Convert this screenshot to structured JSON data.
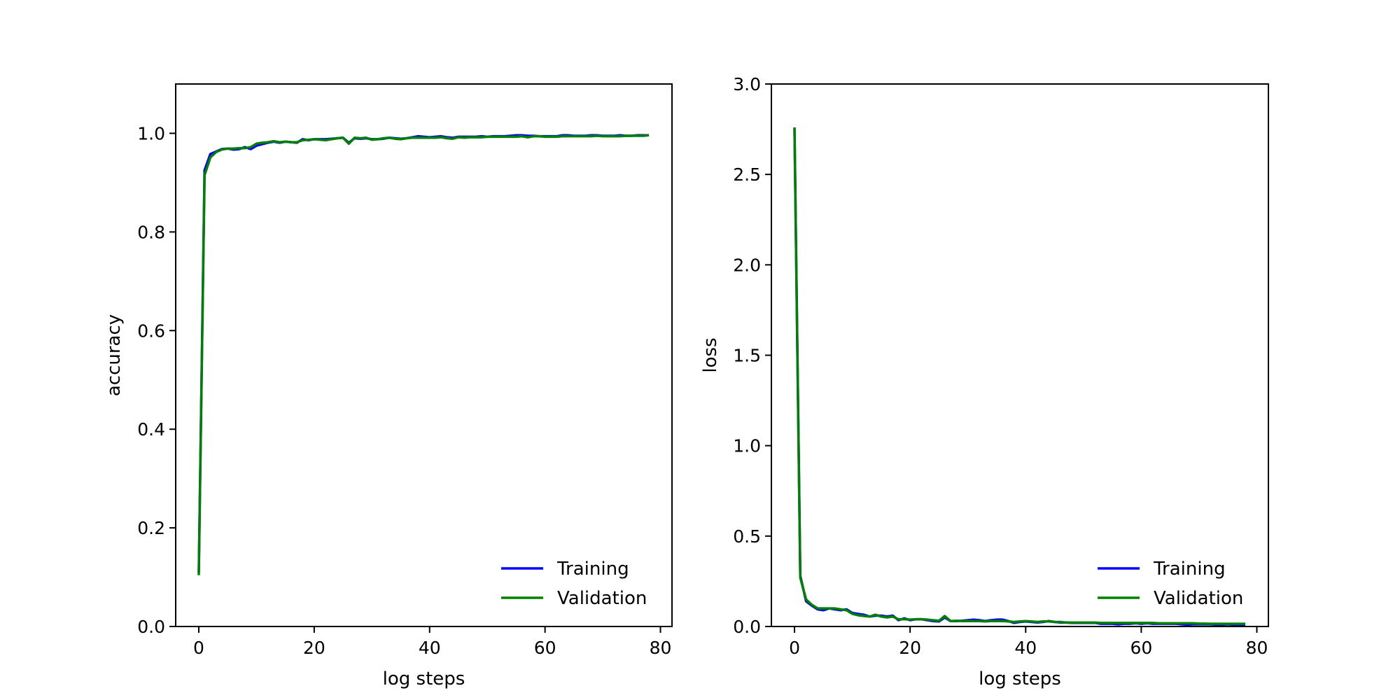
{
  "chart_data": [
    {
      "type": "line",
      "xlabel": "log steps",
      "ylabel": "accuracy",
      "xlim": [
        -4,
        82
      ],
      "ylim": [
        0,
        1.1
      ],
      "xticks": [
        0,
        20,
        40,
        60,
        80
      ],
      "xtick_labels": [
        "0",
        "20",
        "40",
        "60",
        "80"
      ],
      "yticks": [
        0,
        0.2,
        0.4,
        0.6,
        0.8,
        1.0
      ],
      "ytick_labels": [
        "0.0",
        "0.2",
        "0.4",
        "0.6",
        "0.8",
        "1.0"
      ],
      "grid": false,
      "legend": "lower-right",
      "series": [
        {
          "name": "Training",
          "color": "#0000ff",
          "x": [
            0,
            1,
            2,
            3,
            4,
            5,
            6,
            7,
            8,
            9,
            10,
            11,
            12,
            13,
            14,
            15,
            16,
            17,
            18,
            19,
            20,
            21,
            22,
            23,
            24,
            25,
            26,
            27,
            28,
            29,
            30,
            31,
            32,
            33,
            34,
            35,
            36,
            37,
            38,
            39,
            40,
            41,
            42,
            43,
            44,
            45,
            46,
            47,
            48,
            49,
            50,
            51,
            52,
            53,
            54,
            55,
            56,
            57,
            58,
            59,
            60,
            61,
            62,
            63,
            64,
            65,
            66,
            67,
            68,
            69,
            70,
            71,
            72,
            73,
            74,
            75,
            76,
            77,
            78
          ],
          "y": [
            0.11,
            0.925,
            0.958,
            0.963,
            0.968,
            0.969,
            0.967,
            0.968,
            0.972,
            0.968,
            0.975,
            0.978,
            0.981,
            0.983,
            0.981,
            0.983,
            0.982,
            0.981,
            0.988,
            0.986,
            0.988,
            0.988,
            0.988,
            0.989,
            0.99,
            0.991,
            0.981,
            0.99,
            0.989,
            0.99,
            0.988,
            0.988,
            0.989,
            0.991,
            0.99,
            0.989,
            0.99,
            0.992,
            0.994,
            0.993,
            0.992,
            0.993,
            0.994,
            0.992,
            0.991,
            0.993,
            0.993,
            0.993,
            0.993,
            0.994,
            0.993,
            0.994,
            0.994,
            0.994,
            0.995,
            0.996,
            0.996,
            0.995,
            0.995,
            0.994,
            0.994,
            0.994,
            0.994,
            0.996,
            0.996,
            0.995,
            0.995,
            0.995,
            0.996,
            0.996,
            0.995,
            0.995,
            0.995,
            0.996,
            0.995,
            0.995,
            0.996,
            0.996,
            0.996
          ]
        },
        {
          "name": "Validation",
          "color": "#008000",
          "x": [
            0,
            1,
            2,
            3,
            4,
            5,
            6,
            7,
            8,
            9,
            10,
            11,
            12,
            13,
            14,
            15,
            16,
            17,
            18,
            19,
            20,
            21,
            22,
            23,
            24,
            25,
            26,
            27,
            28,
            29,
            30,
            31,
            32,
            33,
            34,
            35,
            36,
            37,
            38,
            39,
            40,
            41,
            42,
            43,
            44,
            45,
            46,
            47,
            48,
            49,
            50,
            51,
            52,
            53,
            54,
            55,
            56,
            57,
            58,
            59,
            60,
            61,
            62,
            63,
            64,
            65,
            66,
            67,
            68,
            69,
            70,
            71,
            72,
            73,
            74,
            75,
            76,
            77,
            78
          ],
          "y": [
            0.104,
            0.915,
            0.951,
            0.962,
            0.967,
            0.969,
            0.969,
            0.97,
            0.97,
            0.972,
            0.979,
            0.981,
            0.982,
            0.984,
            0.982,
            0.983,
            0.982,
            0.982,
            0.986,
            0.987,
            0.988,
            0.987,
            0.986,
            0.988,
            0.99,
            0.991,
            0.979,
            0.991,
            0.99,
            0.991,
            0.987,
            0.988,
            0.99,
            0.991,
            0.989,
            0.988,
            0.99,
            0.991,
            0.991,
            0.991,
            0.991,
            0.991,
            0.992,
            0.99,
            0.989,
            0.992,
            0.991,
            0.992,
            0.992,
            0.992,
            0.993,
            0.993,
            0.993,
            0.993,
            0.993,
            0.993,
            0.994,
            0.992,
            0.994,
            0.994,
            0.993,
            0.993,
            0.993,
            0.994,
            0.994,
            0.994,
            0.994,
            0.994,
            0.994,
            0.995,
            0.994,
            0.994,
            0.994,
            0.994,
            0.995,
            0.995,
            0.995,
            0.995,
            0.996
          ]
        }
      ]
    },
    {
      "type": "line",
      "xlabel": "log steps",
      "ylabel": "loss",
      "xlim": [
        -4,
        82
      ],
      "ylim": [
        0,
        3.0
      ],
      "xticks": [
        0,
        20,
        40,
        60,
        80
      ],
      "xtick_labels": [
        "0",
        "20",
        "40",
        "60",
        "80"
      ],
      "yticks": [
        0,
        0.5,
        1.0,
        1.5,
        2.0,
        2.5,
        3.0
      ],
      "ytick_labels": [
        "0.0",
        "0.5",
        "1.0",
        "1.5",
        "2.0",
        "2.5",
        "3.0"
      ],
      "grid": false,
      "legend": "lower-right",
      "series": [
        {
          "name": "Training",
          "color": "#0000ff",
          "x": [
            0,
            1,
            2,
            3,
            4,
            5,
            6,
            7,
            8,
            9,
            10,
            11,
            12,
            13,
            14,
            15,
            16,
            17,
            18,
            19,
            20,
            21,
            22,
            23,
            24,
            25,
            26,
            27,
            28,
            29,
            30,
            31,
            32,
            33,
            34,
            35,
            36,
            37,
            38,
            39,
            40,
            41,
            42,
            43,
            44,
            45,
            46,
            47,
            48,
            49,
            50,
            51,
            52,
            53,
            54,
            55,
            56,
            57,
            58,
            59,
            60,
            61,
            62,
            63,
            64,
            65,
            66,
            67,
            68,
            69,
            70,
            71,
            72,
            73,
            74,
            75,
            76,
            77,
            78
          ],
          "y": [
            2.75,
            0.28,
            0.14,
            0.115,
            0.095,
            0.09,
            0.1,
            0.095,
            0.09,
            0.095,
            0.075,
            0.07,
            0.065,
            0.055,
            0.06,
            0.06,
            0.055,
            0.06,
            0.035,
            0.045,
            0.035,
            0.04,
            0.04,
            0.035,
            0.03,
            0.028,
            0.05,
            0.03,
            0.03,
            0.032,
            0.035,
            0.038,
            0.035,
            0.03,
            0.035,
            0.038,
            0.038,
            0.03,
            0.02,
            0.025,
            0.028,
            0.025,
            0.022,
            0.025,
            0.03,
            0.025,
            0.022,
            0.022,
            0.02,
            0.02,
            0.02,
            0.02,
            0.02,
            0.015,
            0.015,
            0.015,
            0.012,
            0.015,
            0.015,
            0.018,
            0.015,
            0.018,
            0.015,
            0.015,
            0.015,
            0.015,
            0.015,
            0.012,
            0.01,
            0.012,
            0.012,
            0.012,
            0.012,
            0.01,
            0.01,
            0.012,
            0.01,
            0.01,
            0.01
          ]
        },
        {
          "name": "Validation",
          "color": "#008000",
          "x": [
            0,
            1,
            2,
            3,
            4,
            5,
            6,
            7,
            8,
            9,
            10,
            11,
            12,
            13,
            14,
            15,
            16,
            17,
            18,
            19,
            20,
            21,
            22,
            23,
            24,
            25,
            26,
            27,
            28,
            29,
            30,
            31,
            32,
            33,
            34,
            35,
            36,
            37,
            38,
            39,
            40,
            41,
            42,
            43,
            44,
            45,
            46,
            47,
            48,
            49,
            50,
            51,
            52,
            53,
            54,
            55,
            56,
            57,
            58,
            59,
            60,
            61,
            62,
            63,
            64,
            65,
            66,
            67,
            68,
            69,
            70,
            71,
            72,
            73,
            74,
            75,
            76,
            77,
            78
          ],
          "y": [
            2.76,
            0.27,
            0.15,
            0.12,
            0.1,
            0.1,
            0.1,
            0.1,
            0.095,
            0.09,
            0.07,
            0.062,
            0.058,
            0.055,
            0.065,
            0.055,
            0.05,
            0.055,
            0.04,
            0.04,
            0.038,
            0.04,
            0.04,
            0.038,
            0.035,
            0.032,
            0.058,
            0.03,
            0.032,
            0.03,
            0.03,
            0.03,
            0.03,
            0.028,
            0.03,
            0.03,
            0.03,
            0.028,
            0.025,
            0.028,
            0.03,
            0.028,
            0.025,
            0.028,
            0.028,
            0.025,
            0.025,
            0.022,
            0.022,
            0.022,
            0.022,
            0.022,
            0.022,
            0.02,
            0.02,
            0.02,
            0.02,
            0.02,
            0.02,
            0.02,
            0.02,
            0.02,
            0.02,
            0.018,
            0.018,
            0.018,
            0.018,
            0.018,
            0.018,
            0.018,
            0.016,
            0.016,
            0.015,
            0.015,
            0.015,
            0.015,
            0.015,
            0.015,
            0.015
          ]
        }
      ]
    }
  ]
}
